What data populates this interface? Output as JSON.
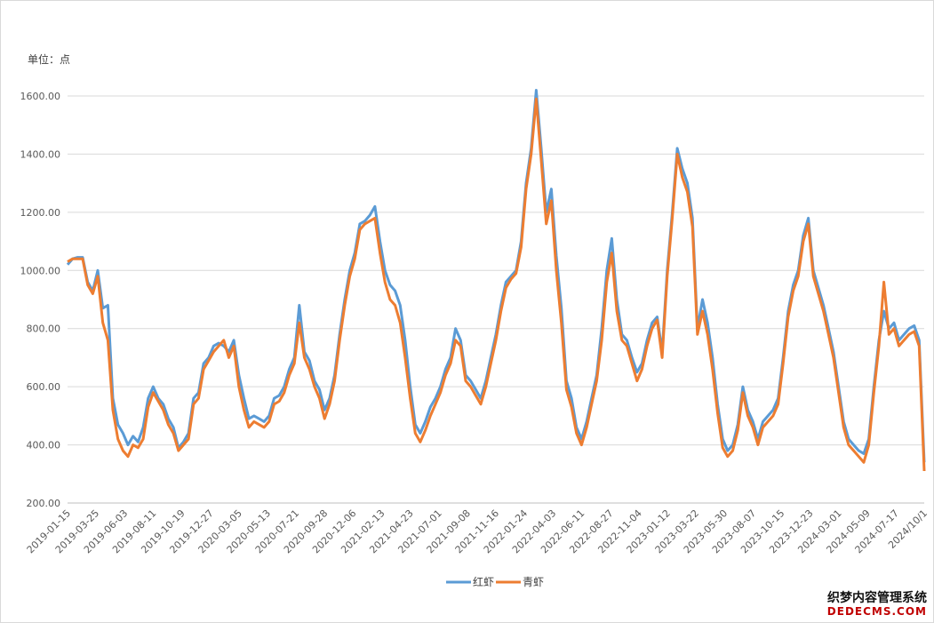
{
  "unit_label": "单位：点",
  "watermark": {
    "line1": "织梦内容管理系统",
    "line2": "DEDECMS.COM"
  },
  "colors": {
    "series1": "#5b9bd5",
    "series2": "#ed7d31",
    "grid": "#d9d9d9",
    "axis": "#bfbfbf"
  },
  "chart_data": {
    "type": "line",
    "title": "",
    "xlabel": "",
    "ylabel": "",
    "ylim": [
      200,
      1600
    ],
    "y_ticks": [
      "200.00",
      "400.00",
      "600.00",
      "800.00",
      "1000.00",
      "1200.00",
      "1400.00",
      "1600.00"
    ],
    "x_tick_labels": [
      "2019-01-15",
      "2019-03-25",
      "2019-06-03",
      "2019-08-11",
      "2019-10-19",
      "2019-12-27",
      "2020-03-05",
      "2020-05-13",
      "2020-07-21",
      "2020-09-28",
      "2020-12-06",
      "2021-02-13",
      "2021-04-23",
      "2021-07-01",
      "2021-09-08",
      "2021-11-16",
      "2022-01-24",
      "2022-04-03",
      "2022-06-11",
      "2022-08-27",
      "2022-11-04",
      "2023-01-12",
      "2023-03-22",
      "2023-05-30",
      "2023-08-07",
      "2023-10-15",
      "2023-12-23",
      "2024-03-01",
      "2024-05-09",
      "2024-07-17",
      "2024/10/1"
    ],
    "grid": true,
    "legend_position": "bottom",
    "series": [
      {
        "name": "红虾",
        "color": "#5b9bd5",
        "values": [
          1020,
          1040,
          1045,
          1045,
          960,
          930,
          1000,
          870,
          880,
          560,
          470,
          440,
          400,
          430,
          410,
          460,
          560,
          600,
          560,
          540,
          490,
          460,
          390,
          410,
          440,
          560,
          580,
          680,
          700,
          740,
          750,
          740,
          720,
          760,
          640,
          560,
          490,
          500,
          490,
          480,
          500,
          560,
          570,
          600,
          660,
          700,
          880,
          720,
          690,
          620,
          590,
          520,
          560,
          640,
          780,
          900,
          1000,
          1060,
          1160,
          1170,
          1190,
          1220,
          1100,
          1000,
          950,
          930,
          880,
          760,
          600,
          470,
          440,
          480,
          530,
          560,
          600,
          660,
          700,
          800,
          760,
          640,
          620,
          590,
          560,
          620,
          700,
          780,
          880,
          960,
          980,
          1000,
          1100,
          1300,
          1420,
          1620,
          1420,
          1200,
          1280,
          1050,
          870,
          620,
          560,
          460,
          420,
          480,
          560,
          640,
          800,
          1000,
          1110,
          900,
          780,
          760,
          700,
          650,
          680,
          760,
          820,
          840,
          720,
          1000,
          1200,
          1420,
          1350,
          1300,
          1180,
          800,
          900,
          820,
          700,
          540,
          420,
          380,
          400,
          470,
          600,
          520,
          480,
          420,
          480,
          500,
          520,
          560,
          700,
          860,
          950,
          1000,
          1120,
          1180,
          1000,
          940,
          880,
          800,
          720,
          600,
          480,
          420,
          400,
          380,
          370,
          420,
          600,
          760,
          860,
          800,
          820,
          760,
          780,
          800,
          810,
          760,
          340
        ]
      },
      {
        "name": "青虾",
        "color": "#ed7d31",
        "values": [
          1030,
          1040,
          1040,
          1040,
          950,
          920,
          980,
          820,
          760,
          520,
          420,
          380,
          360,
          400,
          390,
          420,
          530,
          580,
          550,
          520,
          470,
          440,
          380,
          400,
          420,
          540,
          560,
          660,
          690,
          720,
          740,
          760,
          700,
          740,
          600,
          520,
          460,
          480,
          470,
          460,
          480,
          540,
          550,
          580,
          640,
          680,
          820,
          700,
          660,
          600,
          560,
          490,
          540,
          620,
          760,
          880,
          980,
          1040,
          1140,
          1160,
          1170,
          1180,
          1060,
          960,
          900,
          880,
          820,
          700,
          560,
          440,
          410,
          450,
          500,
          540,
          580,
          640,
          680,
          760,
          740,
          620,
          600,
          570,
          540,
          600,
          680,
          760,
          860,
          940,
          970,
          990,
          1080,
          1280,
          1400,
          1590,
          1380,
          1160,
          1240,
          1000,
          820,
          590,
          530,
          440,
          400,
          460,
          540,
          620,
          760,
          960,
          1060,
          860,
          760,
          740,
          680,
          620,
          660,
          740,
          800,
          830,
          700,
          980,
          1180,
          1400,
          1320,
          1270,
          1150,
          780,
          860,
          780,
          660,
          510,
          390,
          360,
          380,
          450,
          580,
          500,
          460,
          400,
          460,
          480,
          500,
          540,
          680,
          840,
          930,
          980,
          1100,
          1160,
          980,
          920,
          860,
          780,
          700,
          580,
          460,
          400,
          380,
          360,
          340,
          400,
          580,
          740,
          960,
          780,
          800,
          740,
          760,
          780,
          790,
          740,
          310
        ]
      }
    ]
  }
}
